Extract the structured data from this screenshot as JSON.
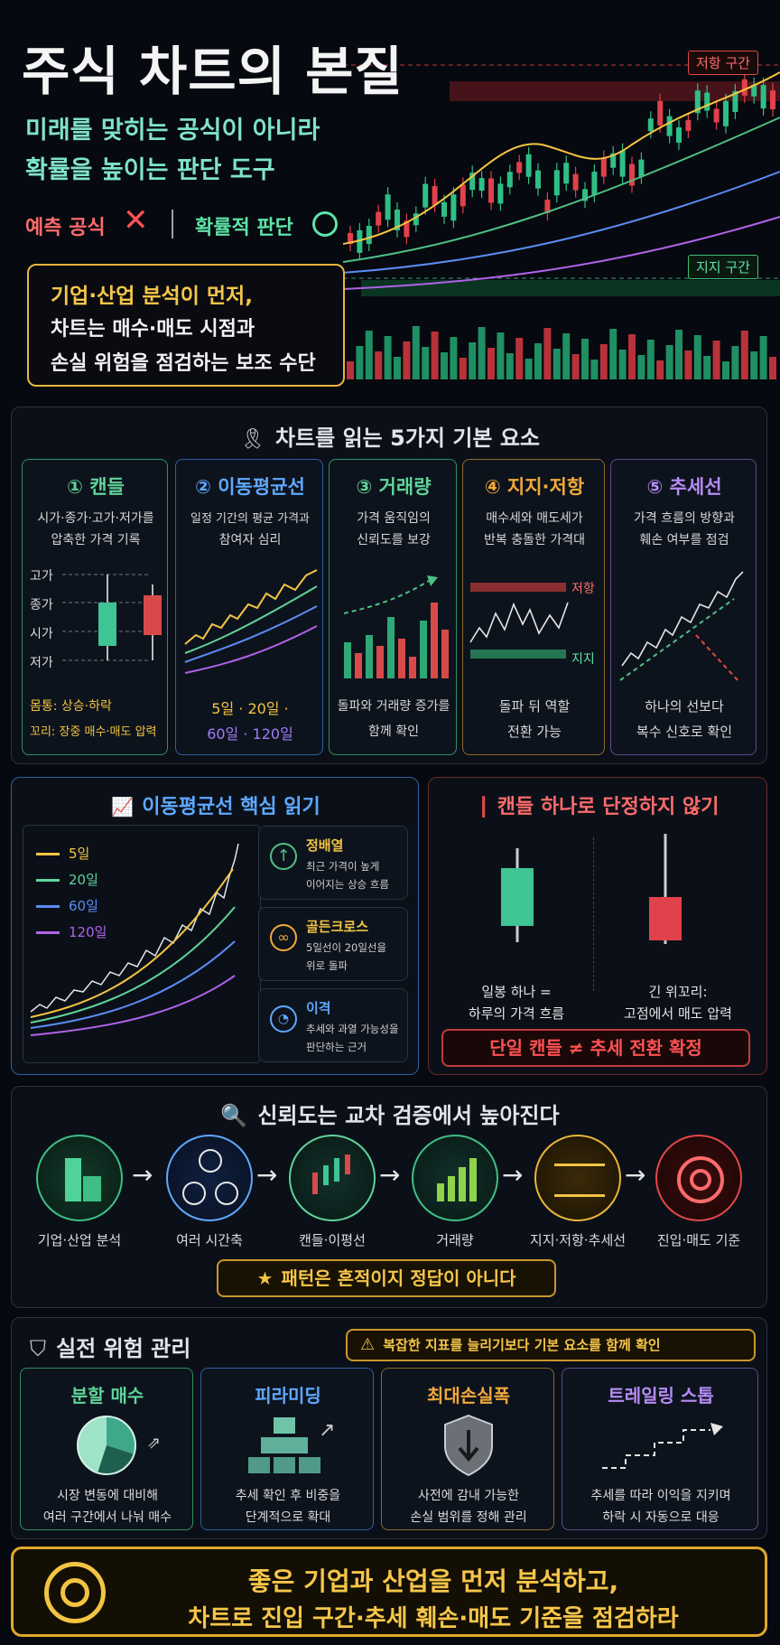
{
  "hero": {
    "title": "주식 차트의 본질",
    "subtitle_1": "미래를 맞히는 공식이 아니라",
    "subtitle_2": "확률을 높이는 판단 도구",
    "contrast_wrong": "예측 공식",
    "contrast_right": "확률적 판단",
    "note_1": "기업·산업 분석이 먼저,",
    "note_2": "차트는 매수·매도 시점과",
    "note_3": "손실 위험을 점검하는 보조 수단",
    "resistance_label": "저항 구간",
    "support_label": "지지 구간"
  },
  "basics": {
    "title": "차트를 읽는 5가지 기본 요소",
    "cards": [
      {
        "title": "① 캔들",
        "desc_1": "시가·종가·고가·저가를",
        "desc_2": "압축한 가격 기록",
        "foot_1": "몸통: 상승·하락",
        "foot_2": "꼬리: 장중 매수·매도 압력",
        "color": "#5fd39a"
      },
      {
        "title": "② 이동평균선",
        "desc_1": "일정 기간의 평균 가격과",
        "desc_2": "참여자 심리",
        "foot_1": "5일 · 20일 ·",
        "foot_2": "60일 · 120일",
        "color": "#5fa8ff"
      },
      {
        "title": "③ 거래량",
        "desc_1": "가격 움직임의",
        "desc_2": "신뢰도를 보강",
        "foot_1": "돌파와 거래량 증가를",
        "foot_2": "함께 확인",
        "color": "#5fd39a"
      },
      {
        "title": "④ 지지·저항",
        "desc_1": "매수세와 매도세가",
        "desc_2": "반복 충돌한 가격대",
        "foot_1": "돌파 뒤 역할",
        "foot_2": "전환 가능",
        "color": "#f2a93b"
      },
      {
        "title": "⑤ 추세선",
        "desc_1": "가격 흐름의 방향과",
        "desc_2": "훼손 여부를 점검",
        "foot_1": "하나의 선보다",
        "foot_2": "복수 신호로 확인",
        "color": "#b58cf5"
      }
    ],
    "candle_labels": [
      "고가",
      "종가",
      "시가",
      "저가"
    ],
    "sr_labels": {
      "resistance": "저항",
      "support": "지지"
    }
  },
  "ma": {
    "title": "이동평균선 핵심 읽기",
    "legend": [
      {
        "label": "5일",
        "color": "#f5c542"
      },
      {
        "label": "20일",
        "color": "#5fd39a"
      },
      {
        "label": "60일",
        "color": "#5b8cf5"
      },
      {
        "label": "120일",
        "color": "#b062e8"
      }
    ],
    "items": [
      {
        "title": "정배열",
        "desc_1": "최근 가격이 높게",
        "desc_2": "이어지는 상승 흐름"
      },
      {
        "title": "골든크로스",
        "desc_1": "5일선이 20일선을",
        "desc_2": "위로 돌파"
      },
      {
        "title": "이격",
        "desc_1": "추세와 과열 가능성을",
        "desc_2": "판단하는 근거"
      }
    ]
  },
  "single": {
    "title": "캔들 하나로 단정하지 않기",
    "left_1": "일봉 하나 =",
    "left_2": "하루의 가격 흐름",
    "right_1": "긴 위꼬리:",
    "right_2": "고점에서 매도 압력",
    "banner": "단일 캔들 ≠ 추세 전환 확정"
  },
  "cross": {
    "title": "신뢰도는 교차 검증에서 높아진다",
    "steps": [
      "기업·산업 분석",
      "여러 시간축",
      "캔들·이평선",
      "거래량",
      "지지·저항·추세선",
      "진입·매도 기준"
    ],
    "banner": "패턴은 흔적이지 정답이 아니다"
  },
  "risk": {
    "title": "실전 위험 관리",
    "warning": "복잡한 지표를 늘리기보다 기본 요소를 함께 확인",
    "cards": [
      {
        "title": "분할 매수",
        "desc_1": "시장 변동에 대비해",
        "desc_2": "여러 구간에서 나눠 매수",
        "color": "#5fd39a"
      },
      {
        "title": "피라미딩",
        "desc_1": "추세 확인 후 비중을",
        "desc_2": "단계적으로 확대",
        "color": "#5fa8ff"
      },
      {
        "title": "최대손실폭",
        "desc_1": "사전에 감내 가능한",
        "desc_2": "손실 범위를 정해 관리",
        "color": "#f2a93b"
      },
      {
        "title": "트레일링 스톱",
        "desc_1": "추세를 따라 이익을 지키며",
        "desc_2": "하락 시 자동으로 대응",
        "color": "#b58cf5"
      }
    ]
  },
  "footer": {
    "line_1": "좋은 기업과 산업을 먼저 분석하고,",
    "line_2": "차트로 진입 구간·추세 훼손·매도 기준을 점검하라"
  }
}
